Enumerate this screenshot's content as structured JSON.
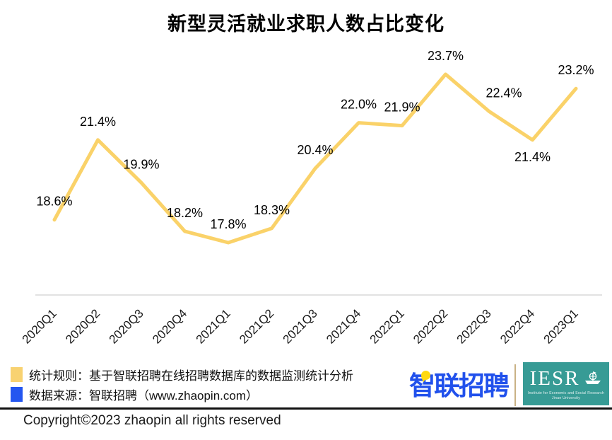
{
  "chart_data": {
    "type": "line",
    "title": "新型灵活就业求职人数占比变化",
    "categories": [
      "2020Q1",
      "2020Q2",
      "2020Q3",
      "2020Q4",
      "2021Q1",
      "2021Q2",
      "2021Q3",
      "2021Q4",
      "2022Q1",
      "2022Q2",
      "2022Q3",
      "2022Q4",
      "2023Q1"
    ],
    "values": [
      18.6,
      21.4,
      19.9,
      18.2,
      17.8,
      18.3,
      20.4,
      22.0,
      21.9,
      23.7,
      22.4,
      21.4,
      23.2
    ],
    "unit": "%",
    "xlabel": "",
    "ylabel": "",
    "ylim": [
      17.0,
      24.5
    ],
    "grid": false,
    "legend_position": "none",
    "data_labels": true,
    "x_tick_rotation": 45,
    "line_color": "#FAD269"
  },
  "legend": {
    "items": [
      {
        "swatch_color": "#F8D271",
        "label": "统计规则：基于智联招聘在线招聘数据库的数据监测统计分析"
      },
      {
        "swatch_color": "#2456F0",
        "label": "数据来源：智联招聘（www.zhaopin.com）"
      }
    ]
  },
  "logos": {
    "zhaopin_text": "智联招聘",
    "iesr_text": "IESR",
    "iesr_caption": "Institute for Economic and Social Research Jinan University"
  },
  "footer": {
    "copyright": "Copyright©2023 zhaopin all rights reserved"
  },
  "colors": {
    "axis_gray": "#D9D9D9",
    "label_black": "#000000",
    "tick_black": "#1a1a1a",
    "zhaopin_blue": "#2151EC",
    "zhaopin_pin_yellow": "#FFD912",
    "iesr_teal": "#379B95",
    "divider_tan": "#C9B285"
  }
}
